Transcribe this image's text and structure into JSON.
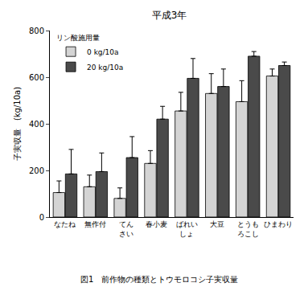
{
  "chart_data": {
    "type": "bar",
    "title": "平成3年",
    "y_label": "子実収量　(kg/10a)",
    "caption": "図1　前作物の種類とトウモロコシ子実収量",
    "legend_title": "リン酸施用量",
    "categories": [
      "なたね",
      "無作付",
      "てん\nさい",
      "春小麦",
      "ばれい\nしょ",
      "大豆",
      "とうも\nろこし",
      "ひまわり"
    ],
    "series": [
      {
        "name": "0 kg/10a",
        "color": "#d4d4d4",
        "values": [
          105,
          130,
          80,
          230,
          455,
          530,
          495,
          605
        ],
        "errors": [
          50,
          50,
          45,
          55,
          80,
          85,
          90,
          30
        ]
      },
      {
        "name": "20 kg/10a",
        "color": "#4a4a4a",
        "values": [
          185,
          195,
          255,
          420,
          595,
          560,
          690,
          650
        ],
        "errors": [
          105,
          80,
          90,
          55,
          85,
          75,
          20,
          15
        ]
      }
    ],
    "ylim": [
      0,
      800
    ],
    "yticks": [
      0,
      200,
      400,
      600,
      800
    ],
    "grid": false,
    "legend": "upper left"
  }
}
